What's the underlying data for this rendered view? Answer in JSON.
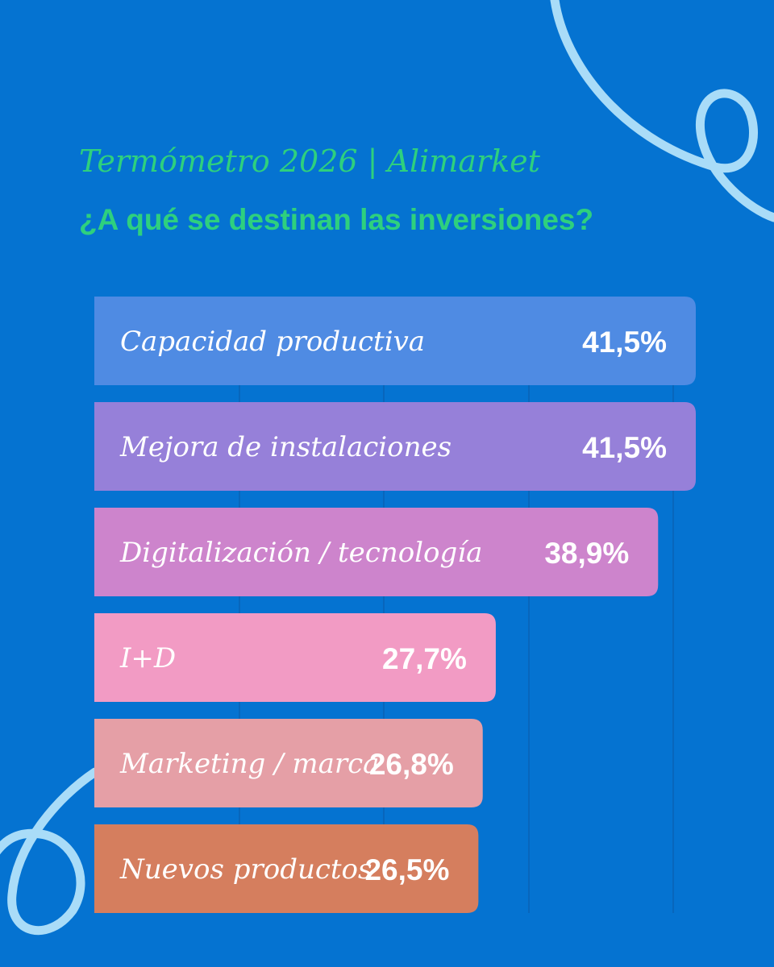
{
  "header": {
    "subtitle": "Termómetro 2026 | Alimarket",
    "title": "¿A qué se destinan las inversiones?"
  },
  "colors": {
    "background": "#0573d1",
    "title_green": "#2ed07e",
    "decoration": "#a9dcf8",
    "gridline": "#0a63b6"
  },
  "chart_data": {
    "type": "bar",
    "orientation": "horizontal",
    "categories": [
      "Capacidad productiva",
      "Mejora de instalaciones",
      "Digitalización / tecnología",
      "I+D",
      "Marketing / marca",
      "Nuevos productos"
    ],
    "values": [
      41.5,
      41.5,
      38.9,
      27.7,
      26.8,
      26.5
    ],
    "value_labels": [
      "41,5%",
      "41,5%",
      "38,9%",
      "27,7%",
      "26,8%",
      "26,5%"
    ],
    "bar_colors": [
      "#4f8be3",
      "#9680d9",
      "#cd84cc",
      "#f29bc4",
      "#e59fa6",
      "#d57e5e"
    ],
    "title": "¿A qué se destinan las inversiones?",
    "xlabel": "",
    "ylabel": "",
    "xlim": [
      0,
      41.5
    ],
    "grid": true,
    "legend": "none"
  }
}
